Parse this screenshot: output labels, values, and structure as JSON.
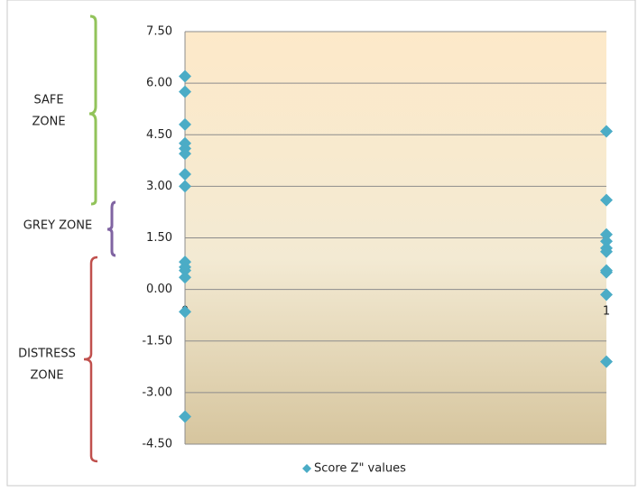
{
  "chart_data": {
    "type": "scatter",
    "xlim": [
      0,
      1
    ],
    "xticks": [
      0,
      1
    ],
    "ylim": [
      -4.5,
      7.5
    ],
    "yticks": [
      {
        "value": 7.5,
        "label": "7.50"
      },
      {
        "value": 6,
        "label": "6.00"
      },
      {
        "value": 4.5,
        "label": "4.50"
      },
      {
        "value": 3,
        "label": "3.00"
      },
      {
        "value": 1.5,
        "label": "1.50"
      },
      {
        "value": 0,
        "label": "0.00"
      },
      {
        "value": -1.5,
        "label": "-1.50"
      },
      {
        "value": -3,
        "label": "-3.00"
      },
      {
        "value": -4.5,
        "label": "-4.50"
      }
    ],
    "grid": true,
    "legend": "bottom",
    "series": [
      {
        "name": "Score Z\" values",
        "color": "#4bacc6",
        "x": [
          0,
          0,
          0,
          0,
          0,
          0,
          0,
          0,
          0,
          0,
          0,
          0,
          0,
          0,
          1,
          1,
          1,
          1,
          1,
          1,
          1,
          1,
          1,
          1
        ],
        "values": [
          6.2,
          5.75,
          4.8,
          4.25,
          4.1,
          3.95,
          3.35,
          3.0,
          0.8,
          0.65,
          0.55,
          0.35,
          -0.65,
          -3.7,
          4.6,
          2.6,
          1.6,
          1.4,
          1.2,
          1.1,
          0.55,
          0.5,
          -0.15,
          -2.1
        ]
      }
    ],
    "annotations": [
      {
        "lines": [
          "SAFE",
          "ZONE"
        ]
      },
      {
        "lines": [
          "GREY ZONE"
        ]
      },
      {
        "lines": [
          "DISTRESS",
          "ZONE"
        ]
      }
    ]
  }
}
